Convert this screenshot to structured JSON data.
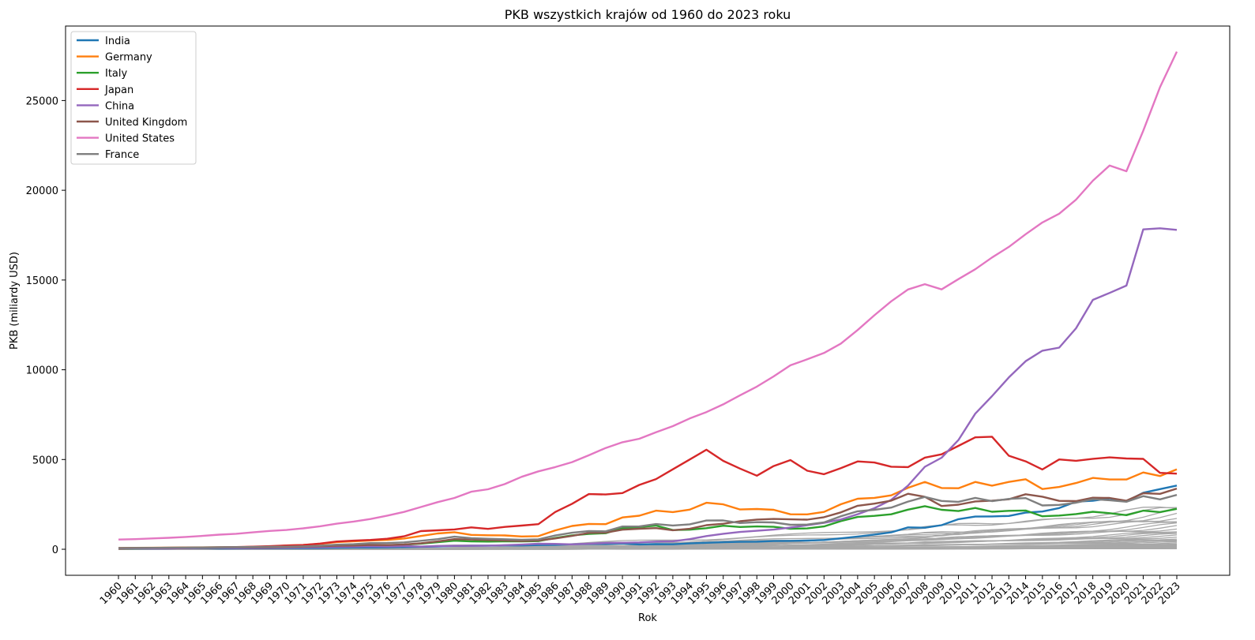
{
  "chart_data": {
    "type": "line",
    "title": "PKB wszystkich krajów od 1960 do 2023 roku",
    "xlabel": "Rok",
    "ylabel": "PKB (miliardy USD)",
    "x": [
      1960,
      1961,
      1962,
      1963,
      1964,
      1965,
      1966,
      1967,
      1968,
      1969,
      1970,
      1971,
      1972,
      1973,
      1974,
      1975,
      1976,
      1977,
      1978,
      1979,
      1980,
      1981,
      1982,
      1983,
      1984,
      1985,
      1986,
      1987,
      1988,
      1989,
      1990,
      1991,
      1992,
      1993,
      1994,
      1995,
      1996,
      1997,
      1998,
      1999,
      2000,
      2001,
      2002,
      2003,
      2004,
      2005,
      2006,
      2007,
      2008,
      2009,
      2010,
      2011,
      2012,
      2013,
      2014,
      2015,
      2016,
      2017,
      2018,
      2019,
      2020,
      2021,
      2022,
      2023
    ],
    "xlim": [
      1956.85,
      2026.15
    ],
    "ylim": [
      -1450,
      29150
    ],
    "yticks": [
      0,
      5000,
      10000,
      15000,
      20000,
      25000
    ],
    "grid": false,
    "legend_position": "top-left",
    "series": [
      {
        "name": "India",
        "color": "#1f77b4",
        "values": [
          37,
          39,
          42,
          49,
          56,
          59,
          45,
          50,
          53,
          58,
          62,
          67,
          71,
          85,
          99,
          98,
          102,
          121,
          137,
          152,
          186,
          193,
          200,
          218,
          212,
          232,
          248,
          279,
          296,
          296,
          321,
          270,
          288,
          279,
          327,
          360,
          392,
          415,
          421,
          458,
          468,
          485,
          515,
          608,
          709,
          820,
          940,
          1217,
          1199,
          1342,
          1676,
          1823,
          1828,
          1857,
          2039,
          2104,
          2295,
          2652,
          2703,
          2836,
          2672,
          3150,
          3353,
          3550
        ]
      },
      {
        "name": "Germany",
        "color": "#ff7f0e",
        "values": [
          72,
          79,
          85,
          92,
          100,
          107,
          114,
          120,
          128,
          143,
          210,
          240,
          298,
          399,
          445,
          490,
          519,
          600,
          740,
          882,
          950,
          803,
          777,
          770,
          711,
          730,
          1053,
          1299,
          1410,
          1400,
          1772,
          1868,
          2151,
          2071,
          2206,
          2591,
          2504,
          2217,
          2243,
          2200,
          1948,
          1946,
          2079,
          2506,
          2815,
          2862,
          3002,
          3425,
          3745,
          3411,
          3400,
          3750,
          3545,
          3753,
          3900,
          3357,
          3469,
          3690,
          3977,
          3889,
          3887,
          4278,
          4082,
          4456
        ]
      },
      {
        "name": "Italy",
        "color": "#2ca02c",
        "values": [
          41,
          46,
          51,
          58,
          63,
          67,
          73,
          81,
          87,
          97,
          114,
          124,
          145,
          176,
          199,
          227,
          225,
          257,
          315,
          394,
          477,
          434,
          428,
          440,
          439,
          452,
          629,
          776,
          860,
          895,
          1180,
          1240,
          1320,
          1070,
          1090,
          1173,
          1310,
          1240,
          1270,
          1250,
          1140,
          1160,
          1270,
          1570,
          1800,
          1860,
          1950,
          2210,
          2400,
          2200,
          2130,
          2300,
          2090,
          2140,
          2160,
          1840,
          1880,
          1960,
          2090,
          2010,
          1900,
          2150,
          2070,
          2250
        ]
      },
      {
        "name": "Japan",
        "color": "#d62728",
        "values": [
          44,
          54,
          60,
          69,
          81,
          91,
          105,
          124,
          146,
          172,
          213,
          240,
          318,
          432,
          479,
          521,
          586,
          721,
          1014,
          1055,
          1105,
          1218,
          1134,
          1243,
          1318,
          1398,
          2078,
          2534,
          3072,
          3054,
          3133,
          3584,
          3909,
          4454,
          4998,
          5545,
          4923,
          4492,
          4098,
          4636,
          4968,
          4374,
          4183,
          4519,
          4893,
          4831,
          4601,
          4579,
          5106,
          5289,
          5759,
          6233,
          6272,
          5212,
          4897,
          4445,
          5004,
          4931,
          5040,
          5118,
          5055,
          5034,
          4256,
          4213
        ]
      },
      {
        "name": "China",
        "color": "#9467bd",
        "values": [
          60,
          50,
          47,
          51,
          60,
          70,
          77,
          73,
          71,
          79,
          93,
          100,
          114,
          139,
          144,
          163,
          154,
          175,
          150,
          178,
          191,
          196,
          205,
          231,
          260,
          309,
          301,
          273,
          313,
          348,
          361,
          383,
          427,
          444,
          564,
          734,
          863,
          962,
          1029,
          1094,
          1211,
          1339,
          1471,
          1660,
          1955,
          2286,
          2752,
          3550,
          4594,
          5102,
          6087,
          7552,
          8532,
          9570,
          10476,
          11062,
          11233,
          12310,
          13895,
          14280,
          14688,
          17820,
          17880,
          17795
        ]
      },
      {
        "name": "United Kingdom",
        "color": "#8c564b",
        "values": [
          73,
          77,
          81,
          86,
          94,
          101,
          108,
          111,
          107,
          117,
          130,
          148,
          169,
          193,
          206,
          241,
          232,
          263,
          335,
          438,
          564,
          540,
          515,
          489,
          461,
          489,
          601,
          745,
          910,
          926,
          1093,
          1142,
          1179,
          1061,
          1140,
          1344,
          1419,
          1560,
          1653,
          1687,
          1665,
          1649,
          1785,
          2055,
          2422,
          2543,
          2708,
          3091,
          2922,
          2411,
          2485,
          2663,
          2707,
          2785,
          3064,
          2929,
          2695,
          2681,
          2872,
          2858,
          2704,
          3122,
          3089,
          3380
        ]
      },
      {
        "name": "United States",
        "color": "#e377c2",
        "values": [
          543,
          563,
          605,
          638,
          686,
          744,
          815,
          862,
          943,
          1019,
          1073,
          1165,
          1280,
          1425,
          1545,
          1684,
          1873,
          2082,
          2352,
          2627,
          2857,
          3207,
          3343,
          3634,
          4037,
          4339,
          4579,
          4855,
          5236,
          5641,
          5963,
          6158,
          6520,
          6858,
          7287,
          7640,
          8073,
          8578,
          9062,
          9631,
          10251,
          10582,
          10936,
          11458,
          12214,
          13037,
          13815,
          14474,
          14770,
          14478,
          15049,
          15600,
          16254,
          16843,
          17550,
          18206,
          18695,
          19477,
          20533,
          21381,
          21060,
          23315,
          25744,
          27720
        ]
      },
      {
        "name": "France",
        "color": "#7f7f7f",
        "values": [
          62,
          67,
          75,
          84,
          94,
          101,
          110,
          118,
          130,
          141,
          148,
          163,
          197,
          254,
          281,
          342,
          346,
          383,
          470,
          562,
          701,
          615,
          585,
          559,
          534,
          553,
          768,
          919,
          1010,
          1001,
          1269,
          1270,
          1402,
          1323,
          1390,
          1601,
          1607,
          1461,
          1510,
          1495,
          1365,
          1378,
          1497,
          1840,
          2116,
          2197,
          2323,
          2656,
          2917,
          2690,
          2643,
          2862,
          2681,
          2808,
          2850,
          2439,
          2472,
          2595,
          2790,
          2729,
          2647,
          2960,
          2780,
          3030
        ]
      }
    ]
  }
}
